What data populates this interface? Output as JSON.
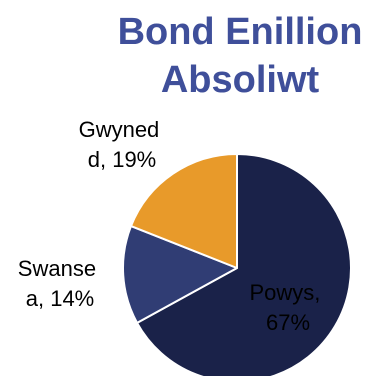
{
  "chart_data": {
    "type": "pie",
    "title_lines": [
      "Bond Enillion",
      "Absoliwt"
    ],
    "title_color": "#3f4f9a",
    "slices": [
      {
        "name": "Powys",
        "value": 67,
        "color": "#1a2249",
        "label_lines": [
          "Powys,",
          "67%"
        ],
        "label_color": "#000000"
      },
      {
        "name": "Swansea",
        "value": 14,
        "color": "#303d74",
        "label_lines": [
          "Swanse",
          "a, 14%"
        ],
        "label_color": "#000000"
      },
      {
        "name": "Gwynedd",
        "value": 19,
        "color": "#e89a2a",
        "label_lines": [
          "Gwyned",
          "d, 19%"
        ],
        "label_color": "#000000"
      }
    ],
    "start_angle_deg": 0,
    "direction": "clockwise",
    "edge_color": "#ffffff"
  }
}
